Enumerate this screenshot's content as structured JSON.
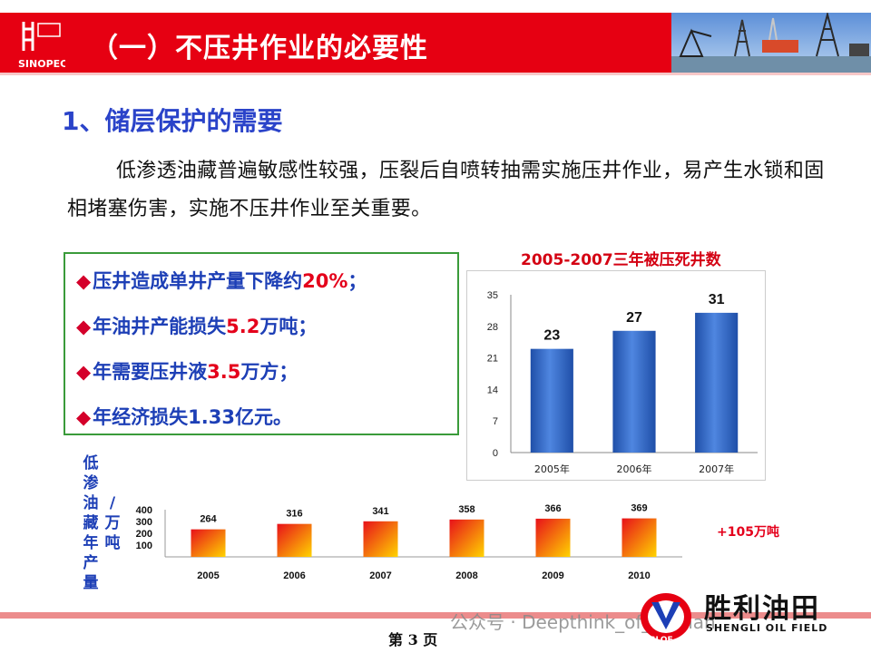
{
  "header": {
    "title": "（一）不压井作业的必要性",
    "logo_text": "SINOPEC",
    "accent_color": "#e60012"
  },
  "section": {
    "heading": "1、储层保护的需要",
    "paragraph": "低渗透油藏普遍敏感性较强，压裂后自喷转抽需实施压井作业，易产生水锁和固相堵塞伤害，实施不压井作业至关重要。"
  },
  "bullets": [
    {
      "marker": "◆",
      "pre": "压井造成单井产量下降约",
      "value": "20%",
      "post": "；"
    },
    {
      "marker": "◆",
      "pre": "年油井产能损失",
      "value": "5.2",
      "post": "万吨；"
    },
    {
      "marker": "◆",
      "pre": "年需要压井液",
      "value": "3.5",
      "post": "万方；"
    },
    {
      "marker": "◆",
      "pre": "年经济损失1.33亿元。",
      "value": "",
      "post": ""
    }
  ],
  "chart_data": [
    {
      "type": "bar",
      "title": "2005-2007三年被压死井数",
      "categories": [
        "2005年",
        "2006年",
        "2007年"
      ],
      "values": [
        23,
        27,
        31
      ],
      "ylim": [
        0,
        35
      ],
      "yticks": [
        0,
        7,
        14,
        21,
        28,
        35
      ],
      "color": "#2f62c4"
    },
    {
      "type": "bar",
      "label_chars": [
        "低",
        "渗",
        "油",
        "藏",
        "年",
        "产",
        "量"
      ],
      "unit_chars": [
        "/",
        "万",
        "吨"
      ],
      "categories": [
        "2005",
        "2006",
        "2007",
        "2008",
        "2009",
        "2010"
      ],
      "values": [
        264,
        316,
        341,
        358,
        366,
        369
      ],
      "yticks": [
        100,
        200,
        300,
        400
      ],
      "ylim": [
        0,
        400
      ],
      "annotation": "+105万吨",
      "color_top": "#e8101a",
      "color_bottom": "#ffd400"
    }
  ],
  "footer": {
    "page_number": "第 3 页",
    "watermark": "公众号 · Deepthink_of_Oilman",
    "field_name": "胜利油田",
    "field_name_en": "SHENGLI OIL FIELD",
    "slof_text": "SLOF"
  }
}
